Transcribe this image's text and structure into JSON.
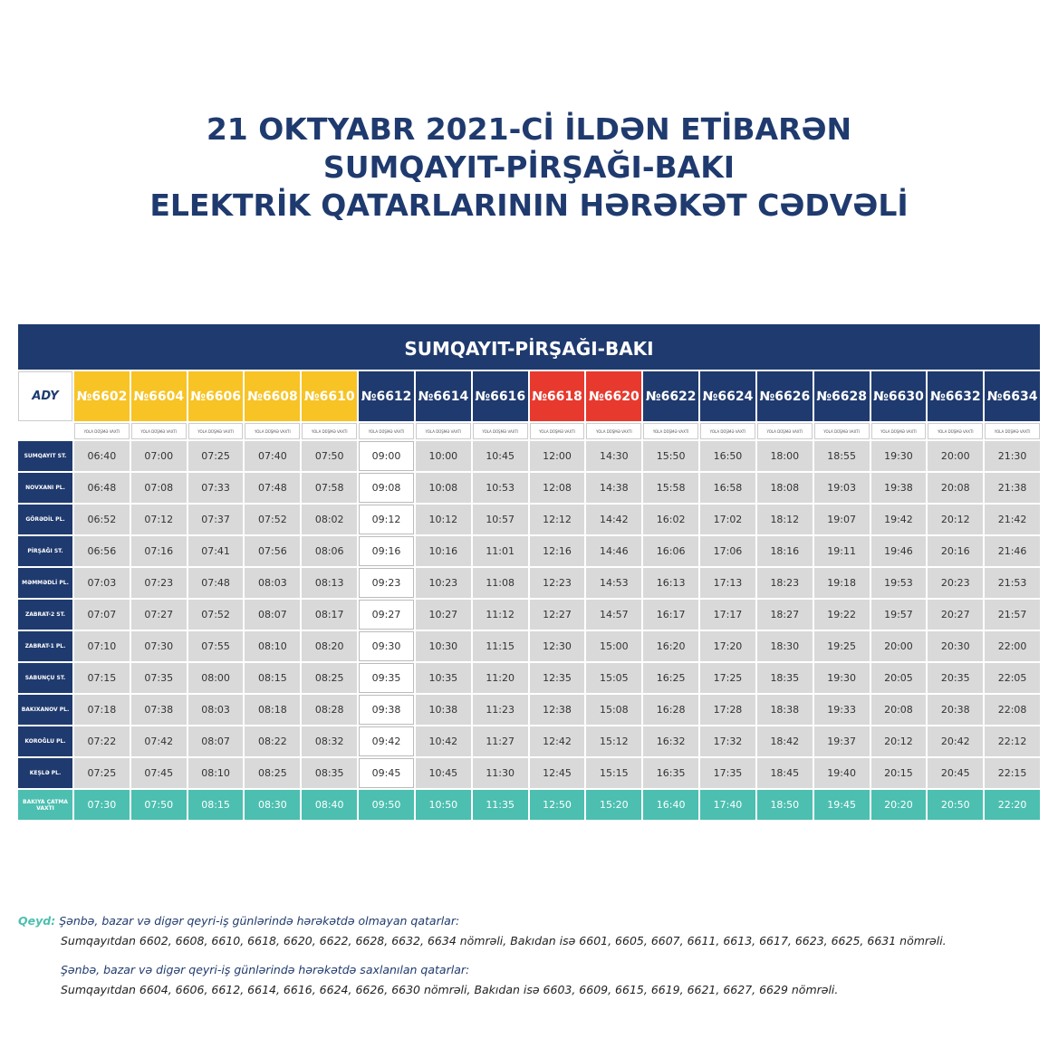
{
  "header": {
    "title_lines": [
      "21 OKTYABR 2021-Cİ İLDƏN ETİBARƏN",
      "SUMQAYIT-PİRŞAĞI-BAKI",
      "ELEKTRİK QATARLARININ HƏRƏKƏT CƏDVƏLİ"
    ]
  },
  "table": {
    "title": "SUMQAYIT-PİRŞAĞI-BAKI",
    "logo": "ADY",
    "sub_label": "YOLA DÜŞMƏ VAXTI",
    "trains": [
      {
        "name": "№6602",
        "color": "#f7c325"
      },
      {
        "name": "№6604",
        "color": "#f7c325"
      },
      {
        "name": "№6606",
        "color": "#f7c325"
      },
      {
        "name": "№6608",
        "color": "#f7c325"
      },
      {
        "name": "№6610",
        "color": "#f7c325"
      },
      {
        "name": "№6612",
        "color": "#1f3a6e"
      },
      {
        "name": "№6614",
        "color": "#1f3a6e"
      },
      {
        "name": "№6616",
        "color": "#1f3a6e"
      },
      {
        "name": "№6618",
        "color": "#e8392f"
      },
      {
        "name": "№6620",
        "color": "#e8392f"
      },
      {
        "name": "№6622",
        "color": "#1f3a6e"
      },
      {
        "name": "№6624",
        "color": "#1f3a6e"
      },
      {
        "name": "№6626",
        "color": "#1f3a6e"
      },
      {
        "name": "№6628",
        "color": "#1f3a6e"
      },
      {
        "name": "№6630",
        "color": "#1f3a6e"
      },
      {
        "name": "№6632",
        "color": "#1f3a6e"
      },
      {
        "name": "№6634",
        "color": "#1f3a6e"
      }
    ],
    "stations": [
      "SUMQAYIT ST.",
      "NOVXANI PL.",
      "GÖRƏDİL PL.",
      "PİRŞAĞI ST.",
      "MƏMMƏDLİ PL.",
      "ZABRAT-2 ST.",
      "ZABRAT-1 PL.",
      "SABUNÇU ST.",
      "BAKIXANOV PL.",
      "KOROĞLU PL.",
      "KEŞLƏ PL.",
      "BAKIYA ÇATMA VAXTI"
    ],
    "rows": [
      [
        "06:40",
        "07:00",
        "07:25",
        "07:40",
        "07:50",
        "09:00",
        "10:00",
        "10:45",
        "12:00",
        "14:30",
        "15:50",
        "16:50",
        "18:00",
        "18:55",
        "19:30",
        "20:00",
        "21:30"
      ],
      [
        "06:48",
        "07:08",
        "07:33",
        "07:48",
        "07:58",
        "09:08",
        "10:08",
        "10:53",
        "12:08",
        "14:38",
        "15:58",
        "16:58",
        "18:08",
        "19:03",
        "19:38",
        "20:08",
        "21:38"
      ],
      [
        "06:52",
        "07:12",
        "07:37",
        "07:52",
        "08:02",
        "09:12",
        "10:12",
        "10:57",
        "12:12",
        "14:42",
        "16:02",
        "17:02",
        "18:12",
        "19:07",
        "19:42",
        "20:12",
        "21:42"
      ],
      [
        "06:56",
        "07:16",
        "07:41",
        "07:56",
        "08:06",
        "09:16",
        "10:16",
        "11:01",
        "12:16",
        "14:46",
        "16:06",
        "17:06",
        "18:16",
        "19:11",
        "19:46",
        "20:16",
        "21:46"
      ],
      [
        "07:03",
        "07:23",
        "07:48",
        "08:03",
        "08:13",
        "09:23",
        "10:23",
        "11:08",
        "12:23",
        "14:53",
        "16:13",
        "17:13",
        "18:23",
        "19:18",
        "19:53",
        "20:23",
        "21:53"
      ],
      [
        "07:07",
        "07:27",
        "07:52",
        "08:07",
        "08:17",
        "09:27",
        "10:27",
        "11:12",
        "12:27",
        "14:57",
        "16:17",
        "17:17",
        "18:27",
        "19:22",
        "19:57",
        "20:27",
        "21:57"
      ],
      [
        "07:10",
        "07:30",
        "07:55",
        "08:10",
        "08:20",
        "09:30",
        "10:30",
        "11:15",
        "12:30",
        "15:00",
        "16:20",
        "17:20",
        "18:30",
        "19:25",
        "20:00",
        "20:30",
        "22:00"
      ],
      [
        "07:15",
        "07:35",
        "08:00",
        "08:15",
        "08:25",
        "09:35",
        "10:35",
        "11:20",
        "12:35",
        "15:05",
        "16:25",
        "17:25",
        "18:35",
        "19:30",
        "20:05",
        "20:35",
        "22:05"
      ],
      [
        "07:18",
        "07:38",
        "08:03",
        "08:18",
        "08:28",
        "09:38",
        "10:38",
        "11:23",
        "12:38",
        "15:08",
        "16:28",
        "17:28",
        "18:38",
        "19:33",
        "20:08",
        "20:38",
        "22:08"
      ],
      [
        "07:22",
        "07:42",
        "08:07",
        "08:22",
        "08:32",
        "09:42",
        "10:42",
        "11:27",
        "12:42",
        "15:12",
        "16:32",
        "17:32",
        "18:42",
        "19:37",
        "20:12",
        "20:42",
        "22:12"
      ],
      [
        "07:25",
        "07:45",
        "08:10",
        "08:25",
        "08:35",
        "09:45",
        "10:45",
        "11:30",
        "12:45",
        "15:15",
        "16:35",
        "17:35",
        "18:45",
        "19:40",
        "20:15",
        "20:45",
        "22:15"
      ],
      [
        "07:30",
        "07:50",
        "08:15",
        "08:30",
        "08:40",
        "09:50",
        "10:50",
        "11:35",
        "12:50",
        "15:20",
        "16:40",
        "17:40",
        "18:50",
        "19:45",
        "20:20",
        "20:50",
        "22:20"
      ]
    ]
  },
  "notes": {
    "label": "Qeyd:",
    "items": [
      {
        "heading": "Şənbə, bazar və digər qeyri-iş günlərində hərəkətdə olmayan qatarlar:",
        "text": "Sumqayıtdan 6602, 6608, 6610, 6618, 6620, 6622, 6628, 6632, 6634 nömrəli, Bakıdan isə  6601, 6605, 6607, 6611, 6613, 6617, 6623, 6625, 6631 nömrəli."
      },
      {
        "heading": "Şənbə, bazar və digər qeyri-iş günlərində hərəkətdə saxlanılan qatarlar:",
        "text": "Sumqayıtdan 6604, 6606, 6612, 6614, 6616, 6624, 6626, 6630 nömrəli, Bakıdan isə 6603, 6609, 6615, 6619, 6621, 6627, 6629 nömrəli."
      }
    ]
  }
}
